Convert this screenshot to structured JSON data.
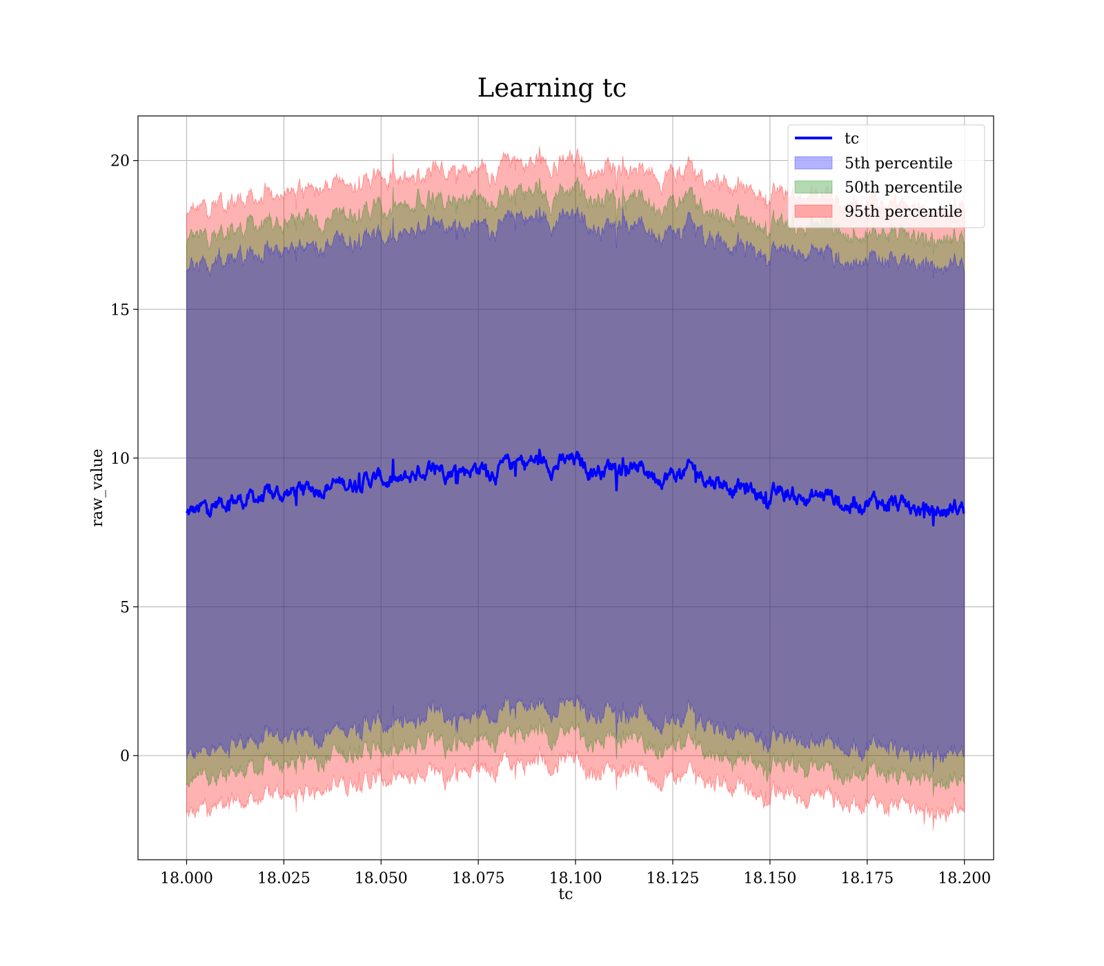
{
  "chart_data": {
    "type": "area",
    "title": "Learning tc",
    "xlabel": "tc",
    "ylabel": "raw_value",
    "xlim": [
      17.9875,
      18.2075
    ],
    "ylim": [
      -3.5,
      21.5
    ],
    "x_range": [
      18.0,
      18.2
    ],
    "xticks": [
      "18.000",
      "18.025",
      "18.050",
      "18.075",
      "18.100",
      "18.125",
      "18.150",
      "18.175",
      "18.200"
    ],
    "yticks": [
      "0",
      "5",
      "10",
      "15",
      "20"
    ],
    "grid": true,
    "legend_position": "top-right",
    "series": [
      {
        "name": "tc",
        "kind": "line",
        "color": "#0000ff",
        "x": [
          18.0,
          18.005,
          18.01,
          18.015,
          18.02,
          18.025,
          18.03,
          18.035,
          18.04,
          18.045,
          18.05,
          18.055,
          18.06,
          18.065,
          18.07,
          18.075,
          18.08,
          18.085,
          18.09,
          18.095,
          18.1,
          18.105,
          18.11,
          18.115,
          18.12,
          18.125,
          18.13,
          18.135,
          18.14,
          18.145,
          18.15,
          18.155,
          18.16,
          18.165,
          18.17,
          18.175,
          18.18,
          18.185,
          18.19,
          18.195,
          18.2
        ],
        "values": [
          8.1,
          8.3,
          8.6,
          8.6,
          8.7,
          8.8,
          8.9,
          9.1,
          9.1,
          9.3,
          9.3,
          9.1,
          9.6,
          9.7,
          9.6,
          9.7,
          9.6,
          9.8,
          9.9,
          9.8,
          9.9,
          9.6,
          9.8,
          9.7,
          9.5,
          9.4,
          9.6,
          9.3,
          9.1,
          8.9,
          8.7,
          8.8,
          8.6,
          8.8,
          8.4,
          8.6,
          8.5,
          8.3,
          8.2,
          8.2,
          8.4
        ]
      },
      {
        "name": "5th percentile",
        "kind": "band",
        "color": "#0000ff",
        "offsets": [
          -8.2,
          8.2
        ]
      },
      {
        "name": "50th percentile",
        "kind": "band",
        "color": "#008000",
        "offsets": [
          -9.1,
          9.1
        ]
      },
      {
        "name": "95th percentile",
        "kind": "band",
        "color": "#ff0000",
        "offsets": [
          -10.1,
          10.1
        ]
      }
    ]
  }
}
